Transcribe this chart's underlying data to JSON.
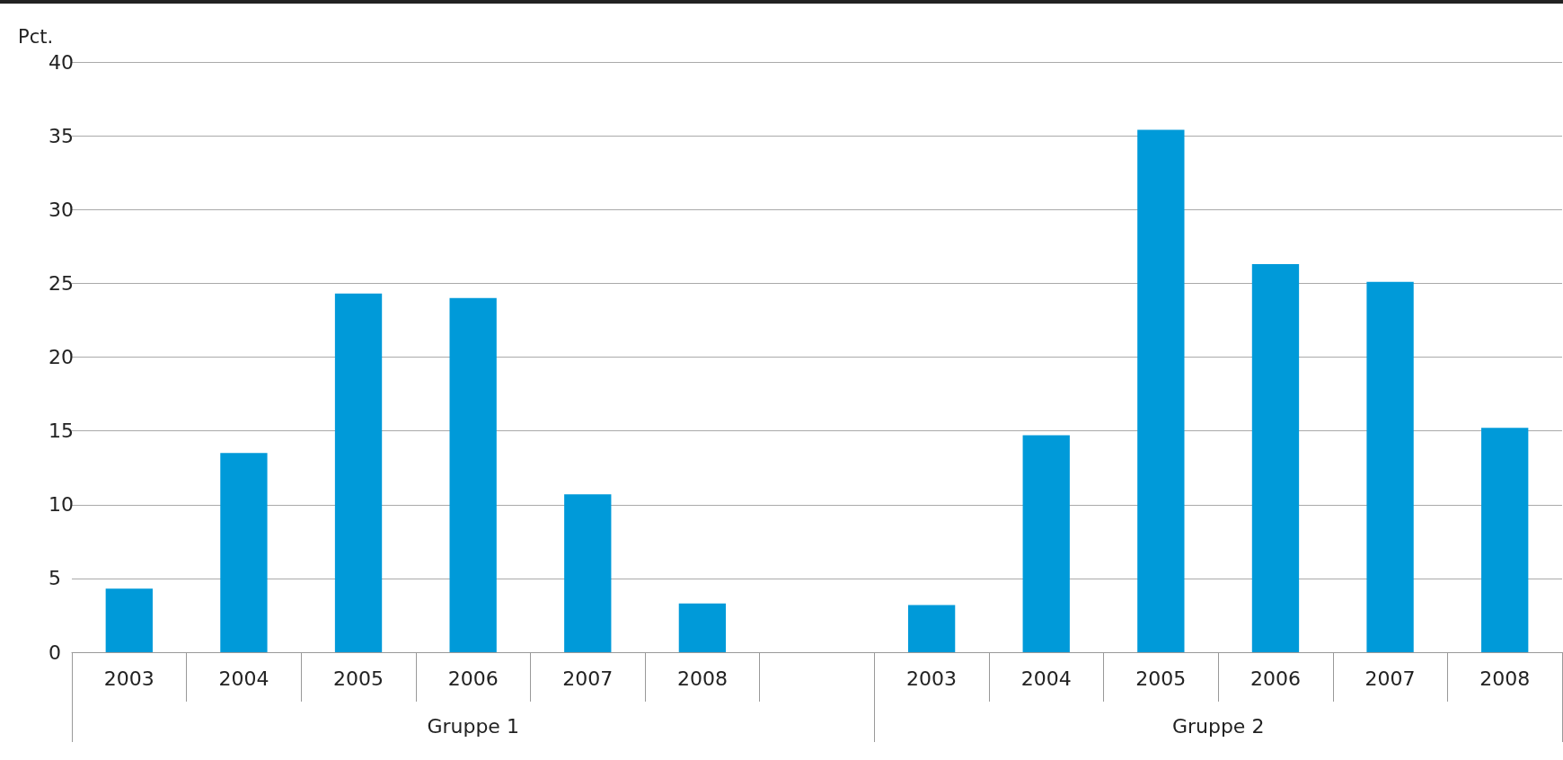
{
  "chart_data": {
    "type": "bar",
    "ylabel": "Pct.",
    "categories": [
      "2003",
      "2004",
      "2005",
      "2006",
      "2007",
      "2008",
      null,
      "2003",
      "2004",
      "2005",
      "2006",
      "2007",
      "2008"
    ],
    "values": [
      4.3,
      13.5,
      24.3,
      24.0,
      10.7,
      3.3,
      null,
      3.2,
      14.7,
      35.4,
      26.3,
      25.1,
      15.2
    ],
    "color": "#009ad9",
    "ylim": [
      0,
      40
    ],
    "yticks": [
      0,
      5,
      10,
      15,
      20,
      25,
      30,
      35,
      40
    ],
    "grid": "y",
    "annotations": [
      "Gruppe 1",
      "Gruppe 2"
    ]
  }
}
